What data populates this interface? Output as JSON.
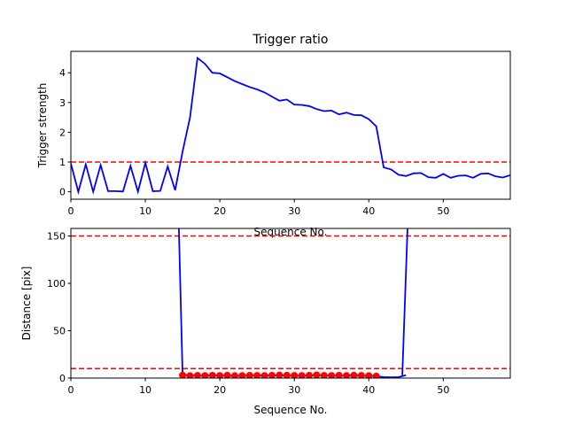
{
  "chart_data": [
    {
      "type": "line",
      "title": "Trigger ratio",
      "xlabel": "Sequence No.",
      "ylabel": "Trigger strength",
      "xlim": [
        0,
        59
      ],
      "ylim": [
        -0.25,
        4.72
      ],
      "xticks": [
        0,
        10,
        20,
        30,
        40,
        50
      ],
      "yticks": [
        0,
        1,
        2,
        3,
        4
      ],
      "grid": false,
      "series": [
        {
          "color": "#0000ff",
          "style": "solid",
          "x": [
            0,
            1,
            2,
            3,
            4,
            5,
            6,
            7,
            8,
            9,
            10,
            11,
            12,
            13,
            14,
            15,
            16,
            17,
            18,
            19,
            20,
            21,
            22,
            23,
            24,
            25,
            26,
            27,
            28,
            29,
            30,
            31,
            32,
            33,
            34,
            35,
            36,
            37,
            38,
            39,
            40,
            41,
            42,
            43,
            44,
            45,
            46,
            47,
            48,
            49,
            50,
            51,
            52,
            53,
            54,
            55,
            56,
            57,
            58,
            59
          ],
          "y": [
            0.95,
            0.0,
            0.92,
            0.0,
            0.9,
            0.02,
            0.02,
            0.01,
            0.87,
            0.0,
            0.97,
            0.02,
            0.03,
            0.85,
            0.05,
            1.35,
            2.5,
            4.5,
            4.3,
            4.0,
            3.98,
            3.85,
            3.72,
            3.62,
            3.52,
            3.44,
            3.34,
            3.2,
            3.06,
            3.1,
            2.93,
            2.92,
            2.88,
            2.78,
            2.71,
            2.73,
            2.6,
            2.66,
            2.58,
            2.57,
            2.44,
            2.2,
            0.82,
            0.75,
            0.57,
            0.53,
            0.62,
            0.63,
            0.49,
            0.47,
            0.6,
            0.47,
            0.54,
            0.55,
            0.47,
            0.6,
            0.62,
            0.52,
            0.48,
            0.56
          ]
        }
      ],
      "hlines": [
        {
          "y": 1.0,
          "color": "#ff0000",
          "style": "dashed"
        }
      ]
    },
    {
      "type": "line",
      "title": "",
      "xlabel": "Sequence No.",
      "ylabel": "Distance [pix]",
      "xlim": [
        0,
        59
      ],
      "ylim": [
        0,
        158
      ],
      "xticks": [
        0,
        10,
        20,
        30,
        40,
        50
      ],
      "yticks": [
        0,
        50,
        100,
        150
      ],
      "grid": false,
      "series": [
        {
          "color": "#0000ff",
          "style": "solid",
          "x": [
            14.5,
            15,
            16,
            17,
            18,
            19,
            20,
            21,
            22,
            23,
            24,
            25,
            26,
            27,
            28,
            29,
            30,
            31,
            32,
            33,
            34,
            35,
            36,
            37,
            38,
            39,
            40,
            41,
            42,
            43,
            44,
            45
          ],
          "y": [
            158,
            3.5,
            2.8,
            2.5,
            2.8,
            2.7,
            2.9,
            2.4,
            2.6,
            2.3,
            2.8,
            2.5,
            2.9,
            2.6,
            3.0,
            2.7,
            2.4,
            2.6,
            2.5,
            3.2,
            2.7,
            2.6,
            2.5,
            2.8,
            2.9,
            2.6,
            2.4,
            2.0,
            1.0,
            0.8,
            1.0,
            3.0
          ]
        },
        {
          "color": "#0000ff",
          "style": "solid",
          "x": [
            44.5,
            45.2
          ],
          "y": [
            3.0,
            158
          ]
        },
        {
          "color": "#ff0000",
          "style": "markers",
          "x": [
            15,
            16,
            17,
            18,
            19,
            20,
            21,
            22,
            23,
            24,
            25,
            26,
            27,
            28,
            29,
            30,
            31,
            32,
            33,
            34,
            35,
            36,
            37,
            38,
            39,
            40,
            41
          ],
          "y": [
            3.0,
            2.5,
            2.7,
            2.6,
            2.8,
            2.6,
            2.9,
            2.4,
            2.6,
            2.8,
            2.7,
            2.6,
            2.8,
            3.1,
            2.9,
            2.7,
            2.6,
            2.8,
            3.3,
            2.7,
            2.6,
            2.8,
            2.6,
            2.9,
            2.7,
            2.5,
            2.0
          ]
        }
      ],
      "hlines": [
        {
          "y": 150,
          "color": "#ff0000",
          "style": "dashed"
        },
        {
          "y": 10,
          "color": "#ff0000",
          "style": "dashed"
        }
      ]
    }
  ]
}
